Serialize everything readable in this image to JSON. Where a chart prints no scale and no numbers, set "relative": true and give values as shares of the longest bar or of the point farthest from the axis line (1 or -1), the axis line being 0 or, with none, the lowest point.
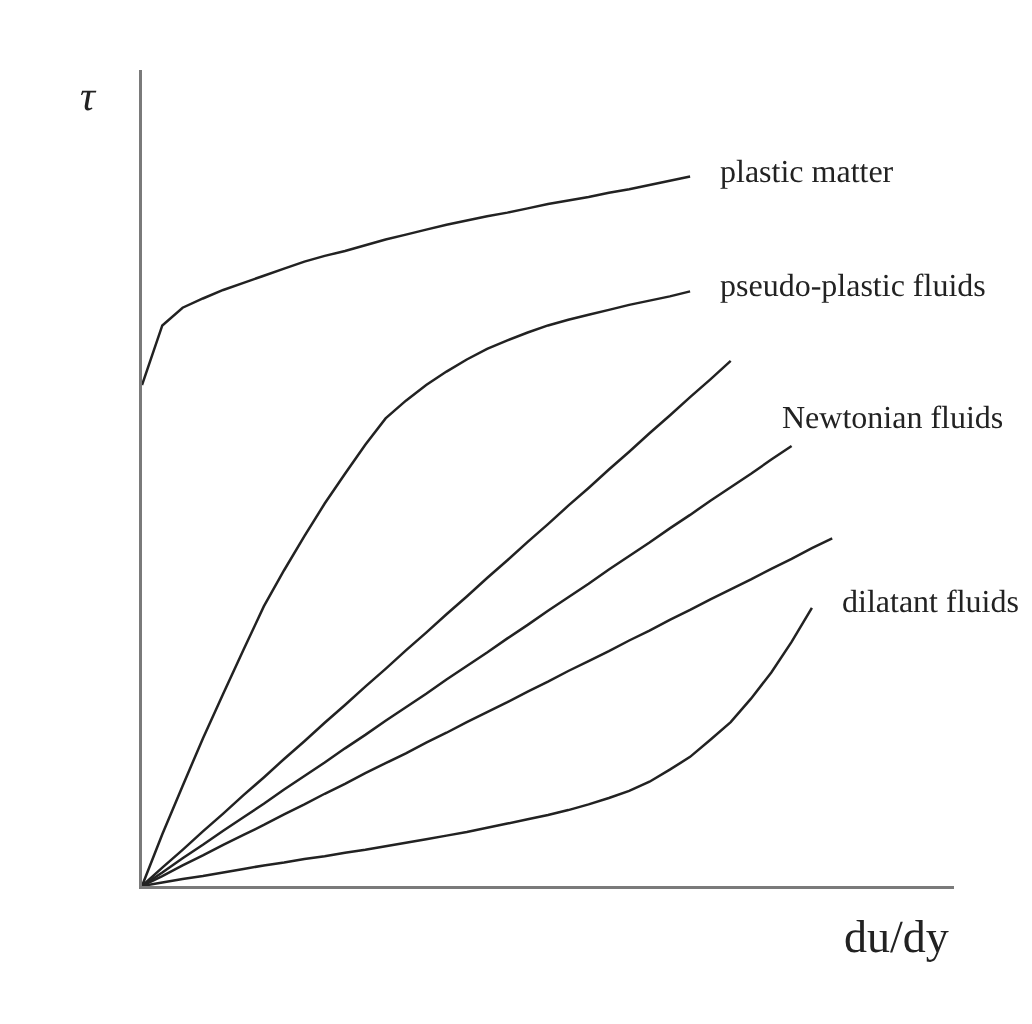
{
  "chart_data": {
    "type": "line",
    "relative": true,
    "xlabel": "du/dy",
    "ylabel": "τ",
    "categories": [
      null,
      null,
      null,
      null,
      null,
      null,
      null,
      null,
      null,
      null,
      null,
      null,
      null,
      null,
      null,
      null,
      null,
      null,
      null,
      null,
      null,
      null,
      null,
      null,
      null,
      null,
      null,
      null,
      null,
      null,
      null,
      null,
      null,
      null,
      null,
      null,
      null,
      null,
      null,
      null,
      null
    ],
    "series": [
      {
        "name": "plastic matter",
        "color": "#222222",
        "values": [
          0.706,
          0.79,
          0.815,
          0.828,
          0.84,
          0.85,
          0.86,
          0.87,
          0.88,
          0.888,
          0.895,
          0.903,
          0.911,
          0.918,
          0.925,
          0.932,
          0.938,
          0.944,
          0.949,
          0.955,
          0.961,
          0.966,
          0.971,
          0.977,
          0.982,
          0.988,
          0.994,
          1.0,
          null,
          null,
          null,
          null,
          null,
          null,
          null,
          null,
          null,
          null,
          null,
          null,
          null
        ]
      },
      {
        "name": "pseudo-plastic fluids",
        "color": "#222222",
        "values": [
          0,
          0.073,
          0.141,
          0.208,
          0.271,
          0.333,
          0.394,
          0.445,
          0.493,
          0.539,
          0.581,
          0.622,
          0.659,
          0.684,
          0.706,
          0.725,
          0.742,
          0.757,
          0.769,
          0.78,
          0.79,
          0.798,
          0.805,
          0.812,
          0.819,
          0.825,
          0.831,
          0.838,
          null,
          null,
          null,
          null,
          null,
          null,
          null,
          null,
          null,
          null,
          null,
          null,
          null
        ]
      },
      {
        "color": "#222222",
        "values": [
          0,
          0.026,
          0.051,
          0.077,
          0.102,
          0.128,
          0.153,
          0.179,
          0.204,
          0.23,
          0.255,
          0.281,
          0.306,
          0.332,
          0.357,
          0.383,
          0.408,
          0.434,
          0.459,
          0.485,
          0.51,
          0.536,
          0.561,
          0.587,
          0.612,
          0.638,
          0.663,
          0.689,
          0.714,
          0.74,
          null,
          null,
          null,
          null,
          null,
          null,
          null,
          null,
          null,
          null,
          null
        ]
      },
      {
        "name": "Newtonian fluids",
        "color": "#222222",
        "values": [
          0,
          0.019,
          0.039,
          0.058,
          0.078,
          0.097,
          0.116,
          0.136,
          0.155,
          0.174,
          0.194,
          0.213,
          0.233,
          0.252,
          0.271,
          0.291,
          0.31,
          0.329,
          0.349,
          0.368,
          0.388,
          0.407,
          0.426,
          0.446,
          0.465,
          0.484,
          0.504,
          0.523,
          0.543,
          0.562,
          0.581,
          0.601,
          0.62,
          null,
          null,
          null,
          null,
          null,
          null,
          null,
          null
        ]
      },
      {
        "color": "#222222",
        "values": [
          0,
          0.014,
          0.029,
          0.043,
          0.058,
          0.072,
          0.086,
          0.101,
          0.115,
          0.13,
          0.144,
          0.159,
          0.173,
          0.187,
          0.202,
          0.216,
          0.231,
          0.245,
          0.259,
          0.274,
          0.288,
          0.303,
          0.317,
          0.331,
          0.346,
          0.36,
          0.375,
          0.389,
          0.404,
          0.418,
          0.432,
          0.447,
          0.461,
          0.476,
          0.49,
          null,
          null,
          null,
          null,
          null,
          null
        ]
      },
      {
        "name": "dilatant fluids",
        "color": "#222222",
        "values": [
          0,
          0.005,
          0.01,
          0.014,
          0.019,
          0.024,
          0.029,
          0.033,
          0.038,
          0.042,
          0.047,
          0.051,
          0.056,
          0.061,
          0.066,
          0.071,
          0.076,
          0.082,
          0.088,
          0.094,
          0.1,
          0.107,
          0.115,
          0.124,
          0.134,
          0.147,
          0.164,
          0.182,
          0.206,
          0.231,
          0.264,
          0.301,
          0.344,
          0.392,
          null,
          null,
          null,
          null,
          null,
          null,
          null
        ]
      }
    ]
  }
}
